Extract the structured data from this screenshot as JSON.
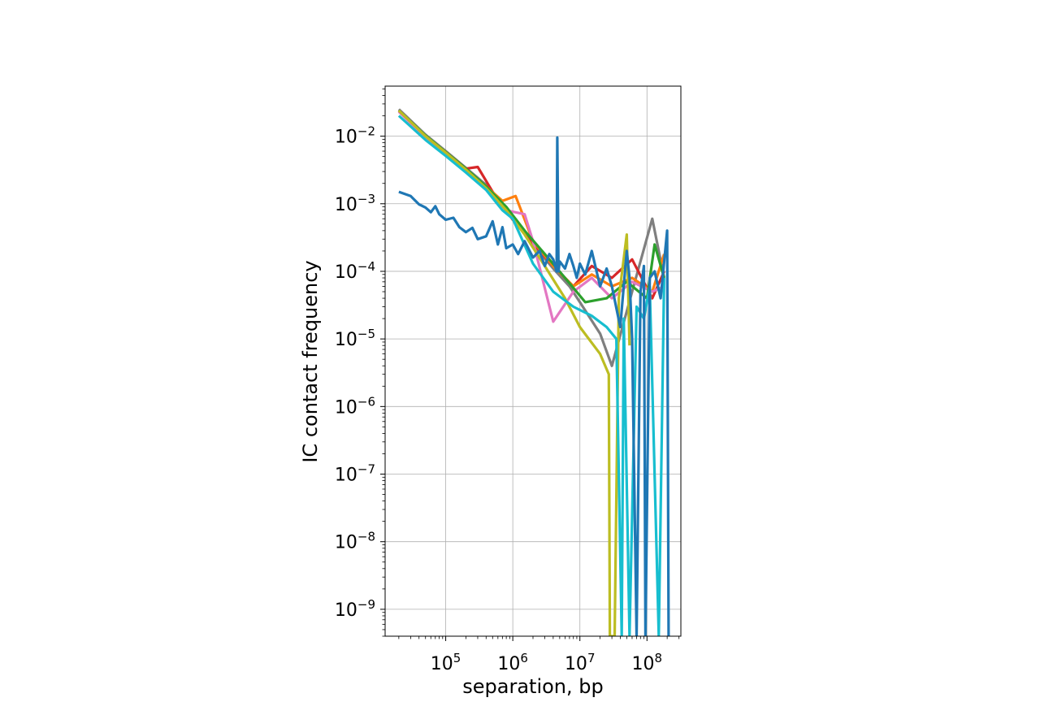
{
  "chart_data": {
    "type": "line",
    "xlabel": "separation, bp",
    "ylabel": "IC contact frequency",
    "xscale": "log",
    "yscale": "log",
    "xlim": [
      12500,
      320000000
    ],
    "ylim": [
      4e-10,
      0.055
    ],
    "grid": true,
    "legend": "none",
    "xticks": [
      {
        "value": 100000,
        "base": "10",
        "exp": "5"
      },
      {
        "value": 1000000,
        "base": "10",
        "exp": "6"
      },
      {
        "value": 10000000,
        "base": "10",
        "exp": "7"
      },
      {
        "value": 100000000,
        "base": "10",
        "exp": "8"
      }
    ],
    "yticks": [
      {
        "value": 0.01,
        "base": "10",
        "exp": "−2"
      },
      {
        "value": 0.001,
        "base": "10",
        "exp": "−3"
      },
      {
        "value": 0.0001,
        "base": "10",
        "exp": "−4"
      },
      {
        "value": 1e-05,
        "base": "10",
        "exp": "−5"
      },
      {
        "value": 1e-06,
        "base": "10",
        "exp": "−6"
      },
      {
        "value": 1e-07,
        "base": "10",
        "exp": "−7"
      },
      {
        "value": 1e-08,
        "base": "10",
        "exp": "−8"
      },
      {
        "value": 1e-09,
        "base": "10",
        "exp": "−9"
      }
    ],
    "series": [
      {
        "color": "#7f7f7f",
        "x": [
          20000,
          50000,
          100000,
          200000,
          400000,
          700000,
          1000000,
          2000000,
          4000000,
          7000000,
          10000000,
          20000000,
          30000000,
          60000000,
          120000000,
          180000000
        ],
        "y": [
          0.025,
          0.0105,
          0.006,
          0.0034,
          0.0019,
          0.00095,
          0.0006,
          0.00025,
          0.00011,
          6e-05,
          3.5e-05,
          1.2e-05,
          4e-06,
          5e-05,
          0.0006,
          8e-05
        ]
      },
      {
        "color": "#d62728",
        "x": [
          20000,
          50000,
          100000,
          200000,
          300000,
          500000,
          1000000,
          2000000,
          4000000,
          8000000,
          15000000,
          30000000,
          60000000,
          120000000,
          180000000
        ],
        "y": [
          0.024,
          0.01,
          0.0058,
          0.0033,
          0.0035,
          0.0015,
          0.00058,
          0.00026,
          0.00012,
          6e-05,
          0.00012,
          8e-05,
          0.00015,
          4e-05,
          0.0001
        ]
      },
      {
        "color": "#ff7f0e",
        "x": [
          20000,
          50000,
          100000,
          200000,
          400000,
          700000,
          1100000,
          2000000,
          4000000,
          8000000,
          15000000,
          30000000,
          60000000,
          120000000,
          180000000
        ],
        "y": [
          0.0235,
          0.0098,
          0.0056,
          0.0032,
          0.0018,
          0.0011,
          0.0013,
          0.00028,
          0.00012,
          6e-05,
          9e-05,
          6e-05,
          8e-05,
          5e-05,
          0.00018
        ]
      },
      {
        "color": "#e377c2",
        "x": [
          20000,
          50000,
          100000,
          200000,
          400000,
          800000,
          1500000,
          2000000,
          4000000,
          8000000,
          15000000,
          30000000,
          60000000,
          120000000,
          180000000
        ],
        "y": [
          0.023,
          0.0096,
          0.0055,
          0.0031,
          0.0017,
          0.0008,
          0.0007,
          0.00028,
          1.8e-05,
          5e-05,
          8e-05,
          4e-05,
          7e-05,
          5e-05,
          6e-05
        ]
      },
      {
        "color": "#2ca02c",
        "x": [
          20000,
          50000,
          100000,
          200000,
          400000,
          800000,
          1500000,
          3000000,
          6000000,
          12000000,
          25000000,
          50000000,
          100000000,
          130000000,
          180000000
        ],
        "y": [
          0.024,
          0.0102,
          0.0058,
          0.0033,
          0.0018,
          0.0009,
          0.0004,
          0.00018,
          8e-05,
          3.5e-05,
          4e-05,
          7e-05,
          4e-05,
          0.00025,
          8e-05
        ]
      },
      {
        "color": "#bcbd22",
        "x": [
          20000,
          50000,
          100000,
          200000,
          400000,
          800000,
          1500000,
          3000000,
          6000000,
          10000000,
          20000000,
          27000000,
          28000000,
          33000000,
          38000000,
          50000000,
          55000000
        ],
        "y": [
          0.024,
          0.01,
          0.0057,
          0.0032,
          0.0017,
          0.0008,
          0.00035,
          0.00012,
          4e-05,
          1.5e-05,
          6e-06,
          3e-06,
          4e-10,
          4e-10,
          4e-05,
          0.00035,
          8e-06
        ]
      },
      {
        "color": "#17becf",
        "x": [
          20000,
          50000,
          100000,
          200000,
          400000,
          700000,
          1000000,
          2000000,
          4000000,
          8000000,
          15000000,
          25000000,
          35000000,
          42000000,
          45000000,
          55000000,
          70000000,
          90000000,
          110000000,
          150000000,
          180000000
        ],
        "y": [
          0.02,
          0.0088,
          0.0051,
          0.0029,
          0.0016,
          0.0008,
          0.0006,
          0.00013,
          5e-05,
          3e-05,
          2.2e-05,
          1.5e-05,
          1e-05,
          4e-10,
          2e-05,
          4e-10,
          3e-05,
          2e-05,
          6e-05,
          4e-10,
          8e-05
        ]
      },
      {
        "color": "#1f77b4",
        "x": [
          20000,
          30000,
          40000,
          50000,
          60000,
          70000,
          80000,
          100000,
          130000,
          160000,
          200000,
          250000,
          300000,
          400000,
          500000,
          600000,
          700000,
          800000,
          1000000,
          1200000,
          1500000,
          2000000,
          2500000,
          3000000,
          3500000,
          4000000,
          4500000,
          4600000,
          4800000,
          5000000,
          6000000,
          7000000,
          8000000,
          9000000,
          10000000,
          12000000,
          15000000,
          20000000,
          25000000,
          30000000,
          40000000,
          50000000,
          55000000,
          60000000,
          70000000,
          80000000,
          90000000,
          95000000,
          110000000,
          130000000,
          160000000,
          200000000,
          210000000
        ],
        "y": [
          0.0015,
          0.0013,
          0.00098,
          0.00088,
          0.00075,
          0.00092,
          0.0007,
          0.00058,
          0.00062,
          0.00045,
          0.00038,
          0.00044,
          0.0003,
          0.00033,
          0.00055,
          0.00025,
          0.00045,
          0.00022,
          0.00025,
          0.00018,
          0.00028,
          0.00016,
          0.0002,
          0.00012,
          0.00018,
          0.00015,
          0.0001,
          0.0095,
          0.0001,
          0.00014,
          0.00011,
          0.00018,
          0.00012,
          8e-05,
          0.00013,
          9e-05,
          0.0002,
          6e-05,
          0.00011,
          6e-05,
          1.5e-05,
          0.0002,
          8e-05,
          1e-05,
          4e-10,
          5e-05,
          0.00012,
          4e-10,
          8e-05,
          0.0001,
          4e-05,
          0.0004,
          4e-10
        ]
      }
    ]
  }
}
